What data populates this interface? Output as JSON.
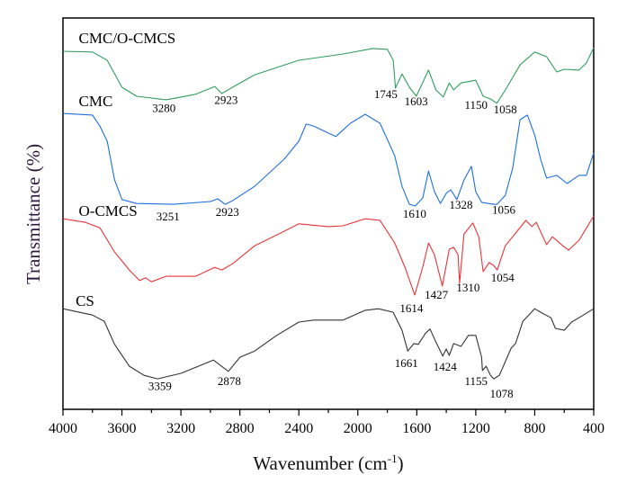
{
  "chart_data": {
    "type": "line",
    "title": "",
    "xlabel": "Wavenumber (cm",
    "xlabel_sup": "-1",
    "xlabel_end": ")",
    "ylabel": "Transmittance (%)",
    "xlim": [
      4000,
      400
    ],
    "ylim": [
      0,
      100
    ],
    "x_reversed": true,
    "x_ticks": [
      4000,
      3600,
      3200,
      2800,
      2400,
      2000,
      1600,
      1200,
      800,
      400
    ],
    "x_tick_labels": [
      "4000",
      "3600",
      "3200",
      "2800",
      "2400",
      "2000",
      "1600",
      "1200",
      "800",
      "400"
    ],
    "x_minor_step": 200,
    "y_ticks_shown": false,
    "grid": false,
    "series": [
      {
        "name": "CMC/O-CMCS",
        "color": "#2f9e5f",
        "label_at": [
          3893,
          93.6
        ],
        "points": [
          [
            4000,
            91.5
          ],
          [
            3800,
            91.3
          ],
          [
            3700,
            89.2
          ],
          [
            3600,
            82.3
          ],
          [
            3500,
            80
          ],
          [
            3300,
            79.1
          ],
          [
            3100,
            80.5
          ],
          [
            2970,
            82.5
          ],
          [
            2923,
            80.7
          ],
          [
            2850,
            82.3
          ],
          [
            2700,
            85.5
          ],
          [
            2400,
            89.2
          ],
          [
            2100,
            90.8
          ],
          [
            1900,
            92.2
          ],
          [
            1800,
            92
          ],
          [
            1760,
            89.2
          ],
          [
            1745,
            82.1
          ],
          [
            1700,
            85.7
          ],
          [
            1650,
            82.3
          ],
          [
            1603,
            80
          ],
          [
            1520,
            86.7
          ],
          [
            1470,
            81.6
          ],
          [
            1420,
            79.8
          ],
          [
            1380,
            83.4
          ],
          [
            1350,
            81.6
          ],
          [
            1300,
            83.4
          ],
          [
            1200,
            84.1
          ],
          [
            1150,
            80
          ],
          [
            1100,
            79.3
          ],
          [
            1058,
            78.2
          ],
          [
            1000,
            81.6
          ],
          [
            900,
            88
          ],
          [
            800,
            91.3
          ],
          [
            720,
            90.1
          ],
          [
            650,
            86.2
          ],
          [
            600,
            86.9
          ],
          [
            500,
            86.7
          ],
          [
            450,
            88.5
          ],
          [
            400,
            92.4
          ]
        ],
        "annotations": [
          {
            "text": "3280",
            "at": [
              3315,
              76
            ]
          },
          {
            "text": "2923",
            "at": [
              2893,
              78
            ]
          },
          {
            "text": "1745",
            "at": [
              1810,
              79.5
            ]
          },
          {
            "text": "1603",
            "at": [
              1604,
              77.7
            ]
          },
          {
            "text": "1150",
            "at": [
              1198,
              76.8
            ]
          },
          {
            "text": "1058",
            "at": [
              1000,
              75.6
            ]
          }
        ]
      },
      {
        "name": "CMC",
        "color": "#1f6fe0",
        "label_at": [
          3893,
          77.5
        ],
        "points": [
          [
            4000,
            75.6
          ],
          [
            3800,
            75.2
          ],
          [
            3750,
            72.4
          ],
          [
            3700,
            68.5
          ],
          [
            3650,
            58.6
          ],
          [
            3600,
            53.6
          ],
          [
            3500,
            52.6
          ],
          [
            3251,
            52.4
          ],
          [
            3000,
            53.1
          ],
          [
            2950,
            53.8
          ],
          [
            2900,
            52.4
          ],
          [
            2850,
            53.3
          ],
          [
            2700,
            57
          ],
          [
            2500,
            63.9
          ],
          [
            2400,
            68.5
          ],
          [
            2350,
            72.9
          ],
          [
            2300,
            72.4
          ],
          [
            2150,
            69.7
          ],
          [
            2050,
            73.1
          ],
          [
            1950,
            75.4
          ],
          [
            1850,
            73.1
          ],
          [
            1750,
            64.8
          ],
          [
            1700,
            57
          ],
          [
            1650,
            52.4
          ],
          [
            1610,
            52
          ],
          [
            1560,
            54
          ],
          [
            1520,
            60.9
          ],
          [
            1480,
            55.6
          ],
          [
            1440,
            52.6
          ],
          [
            1400,
            55.2
          ],
          [
            1370,
            56.1
          ],
          [
            1328,
            53.6
          ],
          [
            1280,
            58.6
          ],
          [
            1230,
            62.1
          ],
          [
            1200,
            55.6
          ],
          [
            1160,
            52.9
          ],
          [
            1080,
            52.4
          ],
          [
            1056,
            52.4
          ],
          [
            1000,
            54.7
          ],
          [
            950,
            61.6
          ],
          [
            900,
            74
          ],
          [
            850,
            75.2
          ],
          [
            800,
            70.1
          ],
          [
            760,
            63.9
          ],
          [
            720,
            59.1
          ],
          [
            650,
            59.8
          ],
          [
            580,
            57.7
          ],
          [
            500,
            59.8
          ],
          [
            450,
            59.8
          ],
          [
            400,
            65.5
          ]
        ],
        "annotations": [
          {
            "text": "3251",
            "at": [
              3288,
              48.3
            ]
          },
          {
            "text": "2923",
            "at": [
              2885,
              49.4
            ]
          },
          {
            "text": "1610",
            "at": [
              1615,
              49
            ]
          },
          {
            "text": "1328",
            "at": [
              1300,
              51.3
            ]
          },
          {
            "text": "1056",
            "at": [
              1010,
              50
            ]
          }
        ]
      },
      {
        "name": "O-CMCS",
        "color": "#e8343a",
        "label_at": [
          3893,
          49.4
        ],
        "points": [
          [
            4000,
            48.7
          ],
          [
            3850,
            47.8
          ],
          [
            3750,
            46.4
          ],
          [
            3650,
            40.2
          ],
          [
            3550,
            35.6
          ],
          [
            3480,
            32.9
          ],
          [
            3440,
            33.6
          ],
          [
            3400,
            32.6
          ],
          [
            3300,
            34
          ],
          [
            3100,
            34
          ],
          [
            2970,
            36.3
          ],
          [
            2923,
            35.6
          ],
          [
            2850,
            37.2
          ],
          [
            2700,
            41.8
          ],
          [
            2500,
            45.5
          ],
          [
            2400,
            47.4
          ],
          [
            2200,
            46.7
          ],
          [
            2100,
            46.9
          ],
          [
            1950,
            48.7
          ],
          [
            1850,
            48.3
          ],
          [
            1750,
            42.5
          ],
          [
            1680,
            36.3
          ],
          [
            1614,
            29.2
          ],
          [
            1560,
            36.3
          ],
          [
            1520,
            42.5
          ],
          [
            1480,
            39.5
          ],
          [
            1427,
            31.5
          ],
          [
            1380,
            40.9
          ],
          [
            1350,
            41.4
          ],
          [
            1320,
            39.5
          ],
          [
            1310,
            32.2
          ],
          [
            1280,
            44.8
          ],
          [
            1220,
            47.6
          ],
          [
            1180,
            44.1
          ],
          [
            1150,
            35.2
          ],
          [
            1110,
            37.5
          ],
          [
            1080,
            36.8
          ],
          [
            1054,
            35.6
          ],
          [
            1000,
            41.8
          ],
          [
            920,
            45.5
          ],
          [
            860,
            48.3
          ],
          [
            820,
            46.7
          ],
          [
            790,
            47.8
          ],
          [
            720,
            42.1
          ],
          [
            680,
            44.1
          ],
          [
            610,
            41.8
          ],
          [
            570,
            40.7
          ],
          [
            500,
            43.2
          ],
          [
            400,
            49.4
          ]
        ],
        "annotations": [
          {
            "text": "1614",
            "at": [
              1636,
              24.8
            ]
          },
          {
            "text": "1427",
            "at": [
              1467,
              28.3
            ]
          },
          {
            "text": "1310",
            "at": [
              1252,
              30.1
            ]
          },
          {
            "text": "1054",
            "at": [
              1018,
              32.6
            ]
          }
        ]
      },
      {
        "name": "CS",
        "color": "#333333",
        "label_at": [
          3914,
          26.4
        ],
        "points": [
          [
            4000,
            25.7
          ],
          [
            3800,
            24.1
          ],
          [
            3720,
            22.5
          ],
          [
            3650,
            16.6
          ],
          [
            3550,
            11
          ],
          [
            3450,
            8.7
          ],
          [
            3359,
            7.8
          ],
          [
            3200,
            9.2
          ],
          [
            3050,
            11.5
          ],
          [
            2980,
            12.6
          ],
          [
            2878,
            9.7
          ],
          [
            2800,
            13.3
          ],
          [
            2700,
            14.9
          ],
          [
            2550,
            18.9
          ],
          [
            2400,
            22.3
          ],
          [
            2300,
            22.8
          ],
          [
            2100,
            22.8
          ],
          [
            1950,
            25.3
          ],
          [
            1860,
            25.7
          ],
          [
            1760,
            24.8
          ],
          [
            1700,
            20.2
          ],
          [
            1661,
            14.9
          ],
          [
            1620,
            16.8
          ],
          [
            1590,
            16.6
          ],
          [
            1540,
            19.5
          ],
          [
            1510,
            20.5
          ],
          [
            1470,
            17.2
          ],
          [
            1424,
            13.6
          ],
          [
            1400,
            15.4
          ],
          [
            1380,
            13.8
          ],
          [
            1350,
            16.8
          ],
          [
            1300,
            16.1
          ],
          [
            1250,
            18.9
          ],
          [
            1200,
            18.9
          ],
          [
            1160,
            13.3
          ],
          [
            1155,
            9.9
          ],
          [
            1130,
            11
          ],
          [
            1100,
            8.7
          ],
          [
            1078,
            7.8
          ],
          [
            1040,
            8.7
          ],
          [
            960,
            15.6
          ],
          [
            930,
            16.8
          ],
          [
            880,
            22.5
          ],
          [
            800,
            25.7
          ],
          [
            750,
            24.6
          ],
          [
            690,
            23.4
          ],
          [
            660,
            20.7
          ],
          [
            600,
            20.2
          ],
          [
            550,
            22.3
          ],
          [
            500,
            23.4
          ],
          [
            400,
            25.7
          ]
        ],
        "annotations": [
          {
            "text": "3359",
            "at": [
              3342,
              5
            ]
          },
          {
            "text": "2878",
            "at": [
              2872,
              6.2
            ]
          },
          {
            "text": "1661",
            "at": [
              1671,
              10.8
            ]
          },
          {
            "text": "1424",
            "at": [
              1408,
              9.9
            ]
          },
          {
            "text": "1155",
            "at": [
              1198,
              6.2
            ]
          },
          {
            "text": "1078",
            "at": [
              1025,
              3
            ]
          }
        ]
      }
    ]
  }
}
